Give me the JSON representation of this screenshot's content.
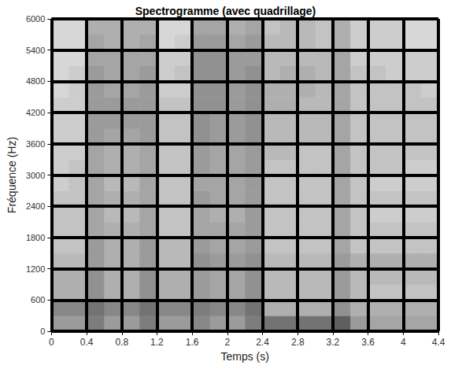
{
  "chart_data": {
    "type": "heatmap",
    "title": "Spectrogramme (avec quadrillage)",
    "xlabel": "Temps (s)",
    "ylabel": "Fréquence (Hz)",
    "xlim": [
      0,
      4.4
    ],
    "xticks": [
      0,
      0.4,
      0.8,
      1.2,
      1.6,
      2,
      2.4,
      2.8,
      3.2,
      3.6,
      4,
      4.4
    ],
    "ylim": [
      0,
      6000
    ],
    "yticks": [
      0,
      600,
      1200,
      1800,
      2400,
      3000,
      3600,
      4200,
      4800,
      5400,
      6000
    ],
    "grid": true,
    "x_edges": [
      0,
      0.2,
      0.4,
      0.6,
      0.8,
      1,
      1.2,
      1.4,
      1.6,
      1.8,
      2,
      2.2,
      2.4,
      2.6,
      2.8,
      3,
      3.2,
      3.4,
      3.6,
      3.8,
      4,
      4.2,
      4.4
    ],
    "y_edges": [
      0,
      300,
      600,
      900,
      1200,
      1500,
      1800,
      2100,
      2400,
      2700,
      3000,
      3300,
      3600,
      3900,
      4200,
      4500,
      4800,
      5100,
      5400,
      5700,
      6000
    ],
    "cells": [
      [
        0.5,
        0.5,
        0.65,
        0.5,
        0.5,
        0.65,
        0.5,
        0.5,
        0.6,
        0.5,
        0.5,
        0.65,
        0.7,
        0.7,
        0.7,
        0.7,
        0.8,
        0.5,
        0.45,
        0.45,
        0.45,
        0.45
      ],
      [
        0.6,
        0.6,
        0.7,
        0.6,
        0.6,
        0.7,
        0.6,
        0.6,
        0.65,
        0.6,
        0.6,
        0.7,
        0.4,
        0.4,
        0.4,
        0.4,
        0.55,
        0.4,
        0.4,
        0.4,
        0.4,
        0.4
      ],
      [
        0.4,
        0.4,
        0.55,
        0.4,
        0.4,
        0.55,
        0.4,
        0.4,
        0.5,
        0.45,
        0.45,
        0.55,
        0.35,
        0.35,
        0.35,
        0.35,
        0.5,
        0.35,
        0.3,
        0.3,
        0.3,
        0.3
      ],
      [
        0.4,
        0.4,
        0.55,
        0.4,
        0.4,
        0.55,
        0.4,
        0.4,
        0.5,
        0.45,
        0.45,
        0.55,
        0.35,
        0.35,
        0.35,
        0.35,
        0.5,
        0.35,
        0.35,
        0.35,
        0.35,
        0.35
      ],
      [
        0.35,
        0.35,
        0.5,
        0.4,
        0.4,
        0.5,
        0.35,
        0.35,
        0.55,
        0.5,
        0.5,
        0.55,
        0.35,
        0.35,
        0.35,
        0.35,
        0.5,
        0.4,
        0.4,
        0.4,
        0.4,
        0.4
      ],
      [
        0.3,
        0.3,
        0.5,
        0.4,
        0.4,
        0.5,
        0.35,
        0.35,
        0.5,
        0.45,
        0.45,
        0.5,
        0.3,
        0.3,
        0.3,
        0.3,
        0.45,
        0.3,
        0.3,
        0.3,
        0.3,
        0.3
      ],
      [
        0.3,
        0.3,
        0.45,
        0.4,
        0.4,
        0.45,
        0.3,
        0.3,
        0.45,
        0.45,
        0.45,
        0.5,
        0.3,
        0.3,
        0.3,
        0.3,
        0.45,
        0.3,
        0.3,
        0.3,
        0.3,
        0.3
      ],
      [
        0.3,
        0.3,
        0.45,
        0.35,
        0.35,
        0.45,
        0.3,
        0.3,
        0.45,
        0.4,
        0.4,
        0.5,
        0.3,
        0.3,
        0.3,
        0.3,
        0.45,
        0.3,
        0.25,
        0.25,
        0.25,
        0.25
      ],
      [
        0.3,
        0.3,
        0.45,
        0.4,
        0.4,
        0.45,
        0.3,
        0.3,
        0.5,
        0.45,
        0.45,
        0.5,
        0.3,
        0.3,
        0.3,
        0.3,
        0.45,
        0.3,
        0.3,
        0.3,
        0.3,
        0.3
      ],
      [
        0.25,
        0.3,
        0.45,
        0.35,
        0.35,
        0.45,
        0.3,
        0.3,
        0.45,
        0.45,
        0.45,
        0.5,
        0.3,
        0.3,
        0.3,
        0.3,
        0.45,
        0.3,
        0.25,
        0.25,
        0.25,
        0.25
      ],
      [
        0.25,
        0.3,
        0.45,
        0.4,
        0.4,
        0.45,
        0.3,
        0.3,
        0.5,
        0.45,
        0.45,
        0.5,
        0.3,
        0.3,
        0.3,
        0.3,
        0.45,
        0.3,
        0.3,
        0.3,
        0.25,
        0.25
      ],
      [
        0.25,
        0.25,
        0.45,
        0.4,
        0.4,
        0.45,
        0.3,
        0.3,
        0.5,
        0.45,
        0.45,
        0.5,
        0.35,
        0.35,
        0.3,
        0.3,
        0.45,
        0.3,
        0.3,
        0.3,
        0.3,
        0.3
      ],
      [
        0.25,
        0.25,
        0.5,
        0.45,
        0.45,
        0.5,
        0.3,
        0.3,
        0.55,
        0.5,
        0.5,
        0.55,
        0.35,
        0.35,
        0.35,
        0.35,
        0.45,
        0.3,
        0.3,
        0.3,
        0.3,
        0.3
      ],
      [
        0.25,
        0.25,
        0.5,
        0.5,
        0.5,
        0.5,
        0.3,
        0.3,
        0.55,
        0.5,
        0.5,
        0.55,
        0.35,
        0.35,
        0.35,
        0.35,
        0.45,
        0.3,
        0.3,
        0.3,
        0.3,
        0.3
      ],
      [
        0.25,
        0.25,
        0.5,
        0.5,
        0.5,
        0.5,
        0.3,
        0.3,
        0.55,
        0.55,
        0.5,
        0.55,
        0.4,
        0.4,
        0.35,
        0.35,
        0.45,
        0.3,
        0.3,
        0.3,
        0.3,
        0.3
      ],
      [
        0.2,
        0.25,
        0.5,
        0.45,
        0.45,
        0.5,
        0.25,
        0.25,
        0.55,
        0.55,
        0.5,
        0.55,
        0.4,
        0.4,
        0.4,
        0.35,
        0.45,
        0.3,
        0.3,
        0.3,
        0.3,
        0.25
      ],
      [
        0.2,
        0.25,
        0.5,
        0.45,
        0.45,
        0.5,
        0.25,
        0.3,
        0.55,
        0.55,
        0.5,
        0.55,
        0.35,
        0.4,
        0.4,
        0.35,
        0.45,
        0.3,
        0.3,
        0.25,
        0.25,
        0.25
      ],
      [
        0.2,
        0.2,
        0.45,
        0.45,
        0.45,
        0.45,
        0.25,
        0.25,
        0.55,
        0.55,
        0.5,
        0.5,
        0.35,
        0.35,
        0.35,
        0.35,
        0.45,
        0.25,
        0.25,
        0.25,
        0.25,
        0.25
      ],
      [
        0.2,
        0.2,
        0.45,
        0.4,
        0.4,
        0.45,
        0.2,
        0.25,
        0.5,
        0.5,
        0.45,
        0.5,
        0.35,
        0.35,
        0.35,
        0.3,
        0.4,
        0.25,
        0.25,
        0.25,
        0.2,
        0.2
      ],
      [
        0.2,
        0.2,
        0.4,
        0.4,
        0.4,
        0.4,
        0.2,
        0.2,
        0.45,
        0.45,
        0.4,
        0.45,
        0.3,
        0.35,
        0.35,
        0.3,
        0.4,
        0.25,
        0.25,
        0.25,
        0.2,
        0.2
      ]
    ]
  }
}
